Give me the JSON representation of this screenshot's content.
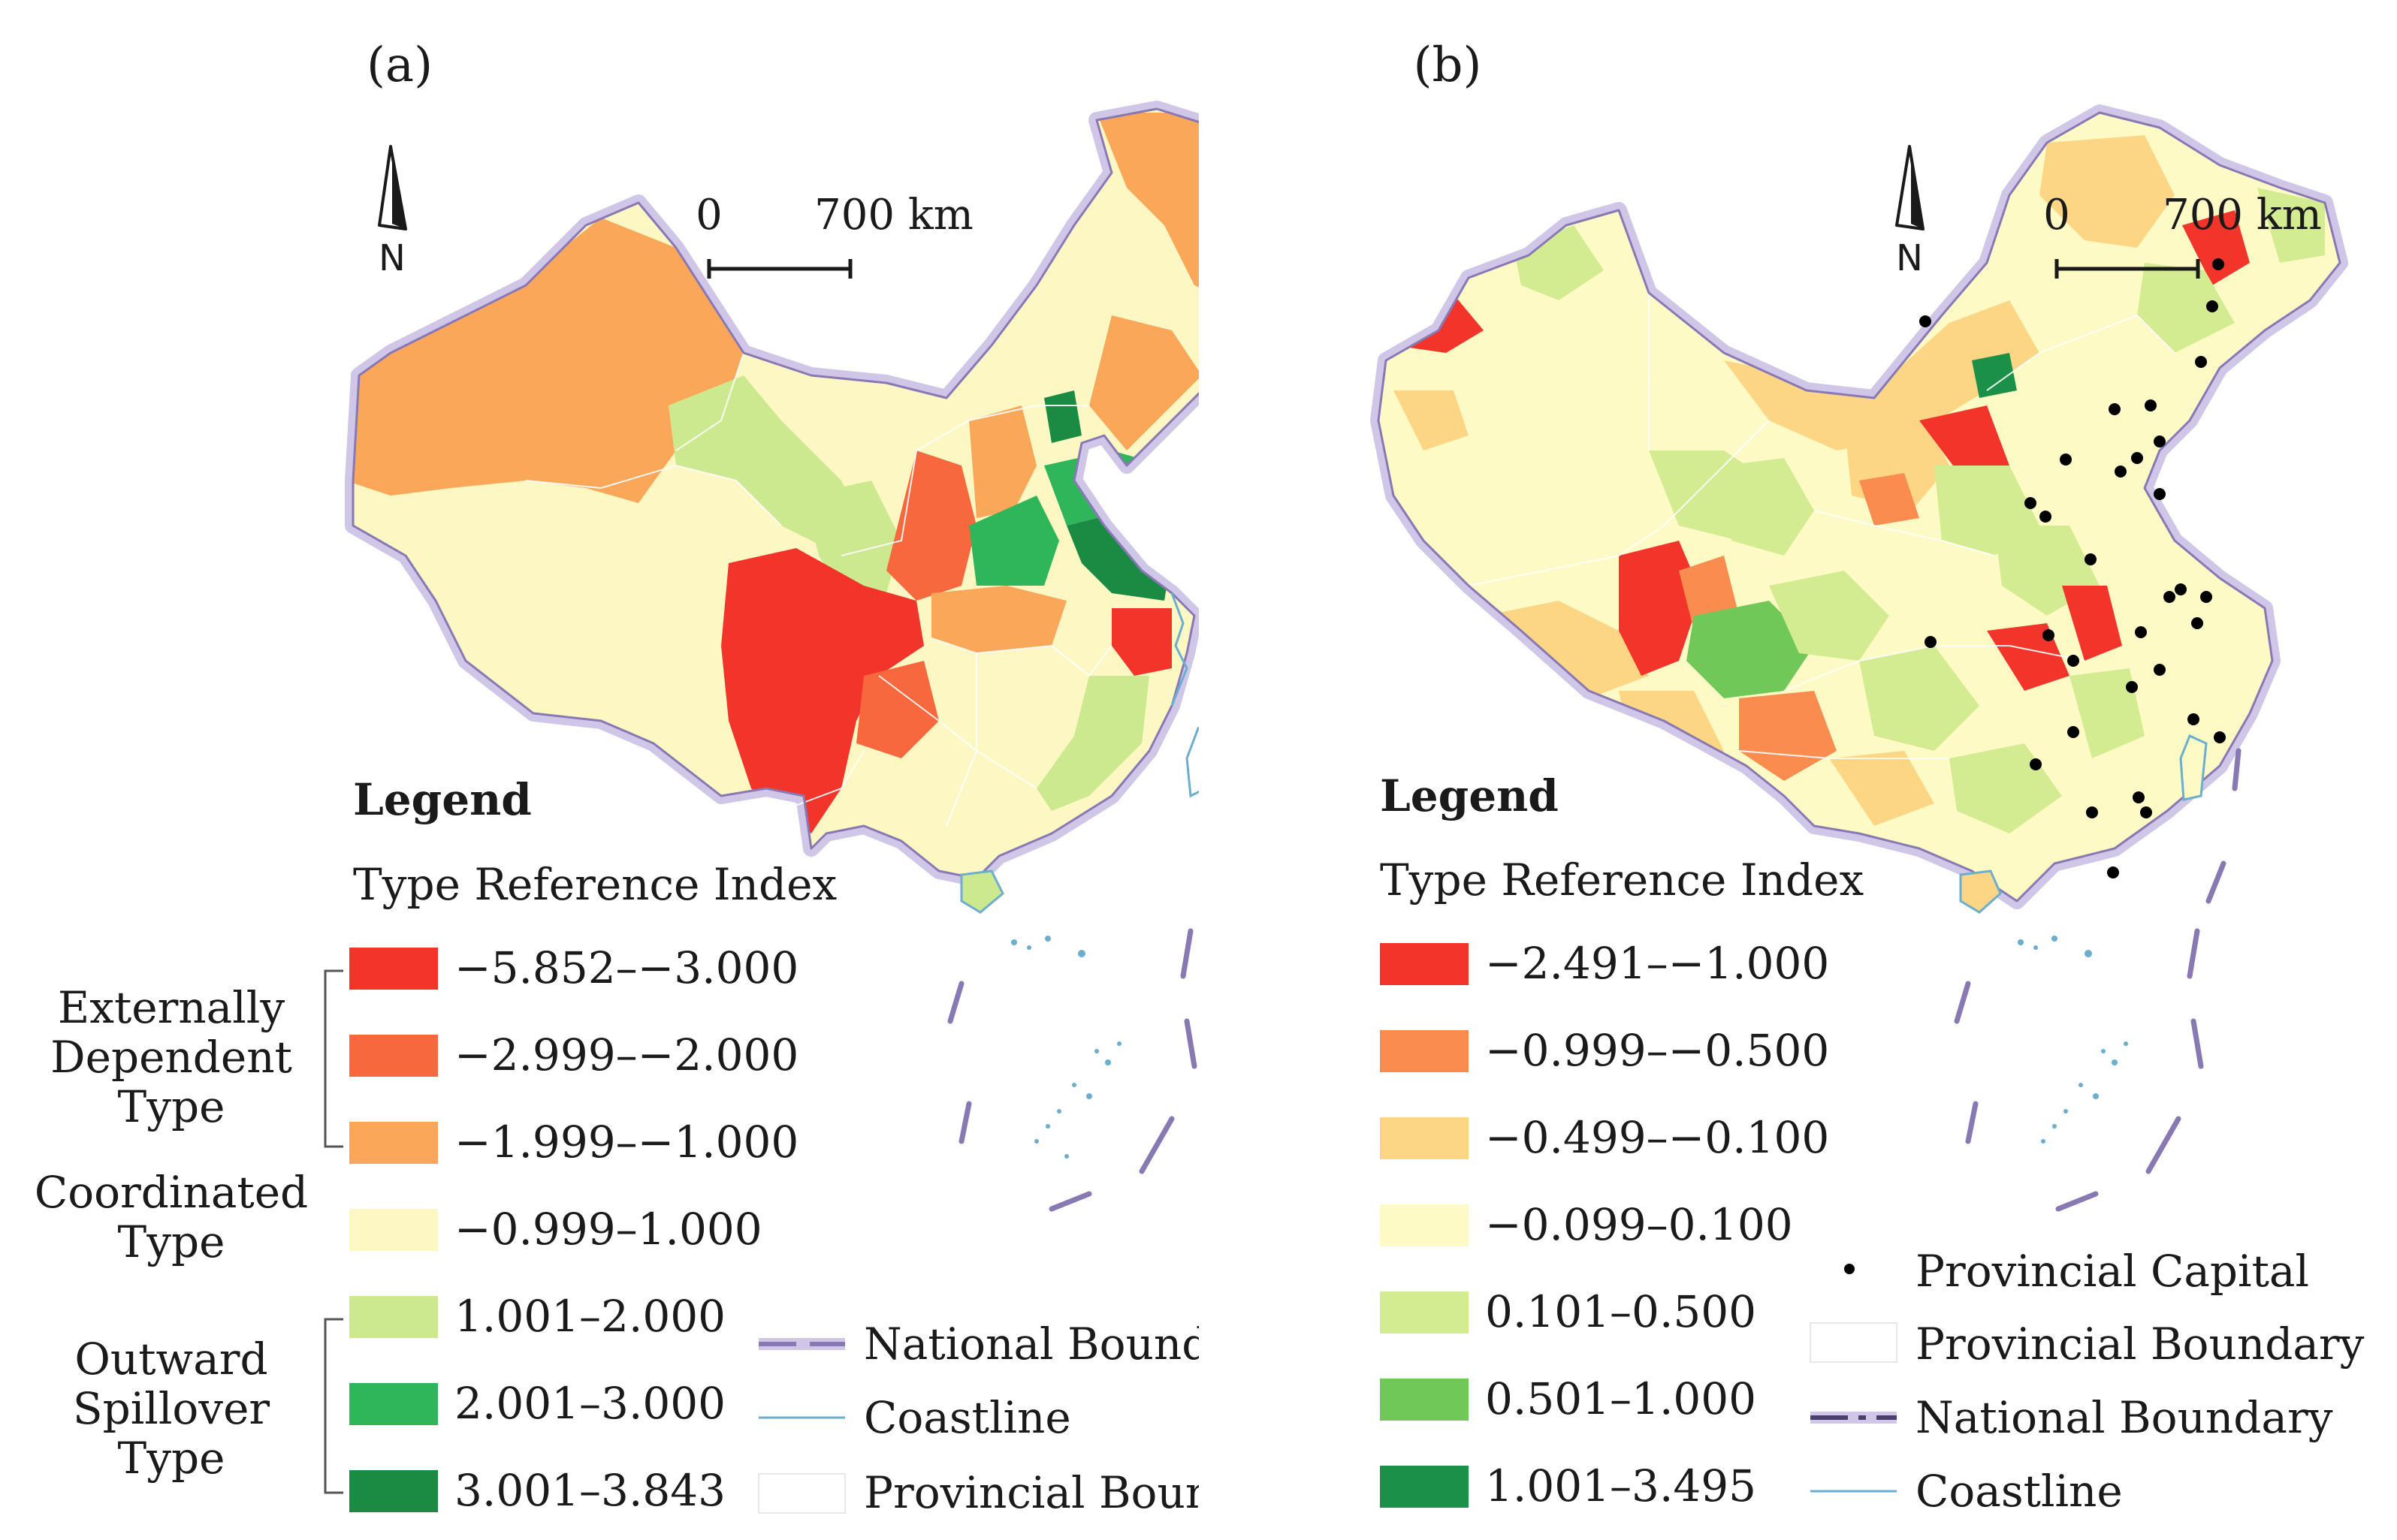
{
  "panel_a": {
    "label": "(a)",
    "north": "N",
    "scale": {
      "zero": "0",
      "dist": "700 km"
    },
    "legend": {
      "title": "Legend",
      "subtitle": "Type Reference Index",
      "classes": [
        {
          "label": "−5.852–−3.000",
          "color": "#f2342a"
        },
        {
          "label": "−2.999–−2.000",
          "color": "#f8683f"
        },
        {
          "label": "−1.999–−1.000",
          "color": "#fba75a"
        },
        {
          "label": "−0.999–1.000",
          "color": "#fdf7c3"
        },
        {
          "label": "1.001–2.000",
          "color": "#cde990"
        },
        {
          "label": "2.001–3.000",
          "color": "#2fb55a"
        },
        {
          "label": "3.001–3.843",
          "color": "#1b8a43"
        }
      ],
      "groups": [
        {
          "lines": [
            "Externally",
            "Dependent",
            "Type"
          ]
        },
        {
          "lines": [
            "Coordinated",
            "Type"
          ]
        },
        {
          "lines": [
            "Outward",
            "Spillover",
            "Type"
          ]
        }
      ],
      "lines": [
        {
          "label": "National Boundary"
        },
        {
          "label": "Coastline"
        },
        {
          "label": "Provincial Boundary"
        }
      ]
    }
  },
  "panel_b": {
    "label": "(b)",
    "north": "N",
    "scale": {
      "zero": "0",
      "dist": "700 km"
    },
    "legend": {
      "title": "Legend",
      "subtitle": "Type Reference Index",
      "classes": [
        {
          "label": "−2.491–−1.000",
          "color": "#f2342a"
        },
        {
          "label": "−0.999–−0.500",
          "color": "#f98c4e"
        },
        {
          "label": "−0.499–−0.100",
          "color": "#fdd685"
        },
        {
          "label": "−0.099–0.100",
          "color": "#fefac6"
        },
        {
          "label": "0.101–0.500",
          "color": "#d3ec91"
        },
        {
          "label": "0.501–1.000",
          "color": "#6fc857"
        },
        {
          "label": "1.001–3.495",
          "color": "#1b9048"
        }
      ],
      "lines": [
        {
          "label": "Provincial Capital"
        },
        {
          "label": "Provincial Boundary"
        },
        {
          "label": "National Boundary"
        },
        {
          "label": "Coastline"
        }
      ]
    }
  },
  "colors": {
    "national_boundary": "#8878b4",
    "national_glow": "#cfc6e8",
    "coastline": "#6aaed0",
    "provincial_boundary": "#ffffff"
  }
}
